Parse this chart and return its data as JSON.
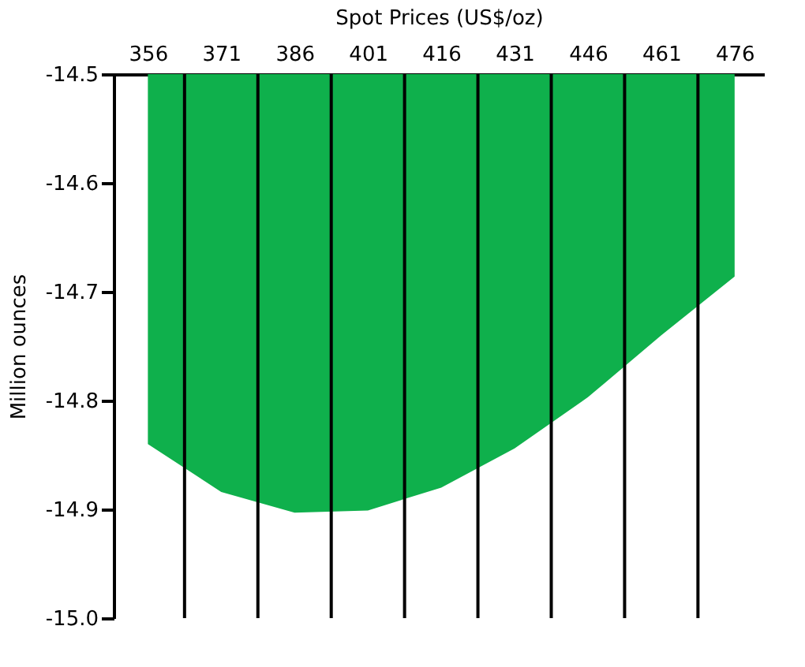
{
  "chart_data": {
    "type": "area",
    "xlabel": "Spot Prices (US$/oz)",
    "ylabel": "Million ounces",
    "x": [
      356,
      371,
      386,
      401,
      416,
      431,
      446,
      461,
      476
    ],
    "series": [
      {
        "color": "#0fb04c",
        "values": [
          -14.84,
          -14.884,
          -14.903,
          -14.901,
          -14.88,
          -14.844,
          -14.797,
          -14.74,
          -14.686
        ]
      }
    ],
    "xlim": [
      349,
      482
    ],
    "ylim": [
      -15.0,
      -14.5
    ],
    "xticks": [
      356,
      371,
      386,
      401,
      416,
      431,
      446,
      461,
      476,
      {
        "value": 363.5,
        "label": null
      },
      {
        "value": 378.5,
        "label": null
      },
      {
        "value": 393.5,
        "label": null
      },
      {
        "value": 408.5,
        "label": null
      },
      {
        "value": 423.5,
        "label": null
      },
      {
        "value": 438.5,
        "label": null
      },
      {
        "value": 453.5,
        "label": null
      },
      {
        "value": 468.5,
        "label": null
      }
    ],
    "yticks": [
      {
        "value": -15.0,
        "label": "-15.0"
      },
      -14.9,
      -14.8,
      -14.7,
      -14.6,
      -14.5
    ],
    "grid": "x"
  }
}
